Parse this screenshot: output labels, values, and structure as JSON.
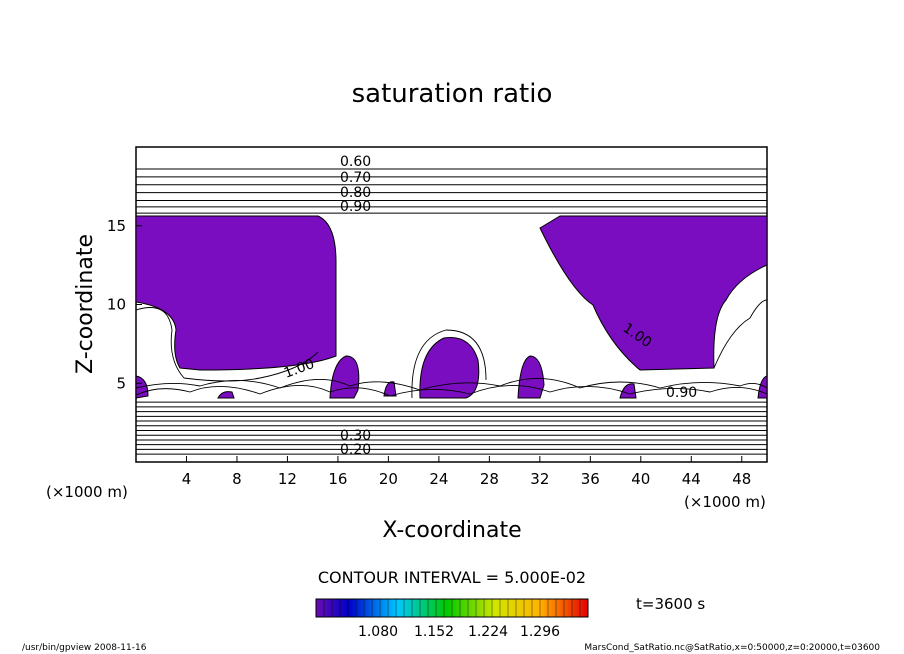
{
  "chart_data": {
    "type": "contour",
    "title": "saturation ratio",
    "xlabel": "X-coordinate",
    "ylabel": "Z-coordinate",
    "x_unit_left": "(×1000 m)",
    "x_unit_right": "(×1000 m)",
    "xlim": [
      0,
      50
    ],
    "ylim": [
      0,
      20
    ],
    "x_ticks": [
      "4",
      "8",
      "12",
      "16",
      "20",
      "24",
      "28",
      "32",
      "36",
      "40",
      "44",
      "48"
    ],
    "y_ticks": [
      "5",
      "10",
      "15"
    ],
    "contour_labels": [
      "0.60",
      "0.70",
      "0.80",
      "0.90",
      "1.00",
      "1.00",
      "0.90",
      "0.20",
      "0.30"
    ],
    "upper_levels_z": [
      18.6,
      18.1,
      17.6,
      17.1,
      16.6,
      16.2,
      15.8
    ],
    "lower_levels_z": [
      3.8,
      3.5,
      3.2,
      2.9,
      2.6,
      2.3,
      2.0,
      1.7,
      1.4,
      1.1,
      0.8,
      0.5
    ],
    "contour_interval_text": "CONTOUR INTERVAL = 5.000E-02",
    "colorbar_ticks": [
      "1.080",
      "1.152",
      "1.224",
      "1.296"
    ],
    "time_text": "t=3600 s",
    "shade_color": "#7b0dc0",
    "footer_left": "/usr/bin/gpview   2008-11-16",
    "footer_right": "MarsCond_SatRatio.nc@SatRatio,x=0:50000,z=0:20000,t=03600"
  }
}
